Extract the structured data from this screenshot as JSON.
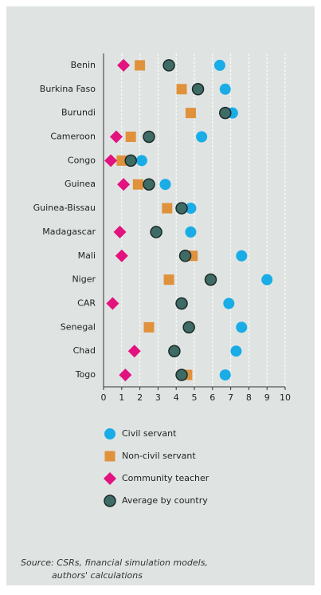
{
  "chart_data": {
    "type": "dot",
    "categories": [
      "Benin",
      "Burkina Faso",
      "Burundi",
      "Cameroon",
      "Congo",
      "Guinea",
      "Guinea-Bissau",
      "Madagascar",
      "Mali",
      "Niger",
      "CAR",
      "Senegal",
      "Chad",
      "Togo"
    ],
    "series": [
      {
        "name": "Civil servant",
        "color": "#19ace6",
        "marker": "circle",
        "values": [
          6.4,
          6.7,
          7.1,
          5.4,
          2.1,
          3.4,
          4.8,
          4.8,
          7.6,
          9.0,
          6.9,
          7.6,
          7.3,
          6.7
        ]
      },
      {
        "name": "Non-civil servant",
        "color": "#e0913c",
        "marker": "square",
        "values": [
          2.0,
          4.3,
          4.8,
          1.5,
          1.0,
          1.9,
          3.5,
          null,
          4.9,
          3.6,
          null,
          2.5,
          null,
          4.6
        ]
      },
      {
        "name": "Community teacher",
        "color": "#e2127f",
        "marker": "diamond",
        "values": [
          1.1,
          null,
          null,
          0.7,
          0.4,
          1.1,
          null,
          0.9,
          1.0,
          null,
          0.5,
          null,
          1.7,
          1.2
        ]
      },
      {
        "name": "Average by country",
        "color": "#3f6b66",
        "marker": "ringed-circle",
        "values": [
          3.6,
          5.2,
          6.7,
          2.5,
          1.5,
          2.5,
          4.3,
          2.9,
          4.5,
          5.9,
          4.3,
          4.7,
          3.9,
          4.3
        ]
      }
    ],
    "xlim": [
      0,
      10
    ],
    "xticks": [
      0,
      1,
      2,
      3,
      4,
      5,
      6,
      7,
      8,
      9,
      10
    ],
    "grid": true,
    "source": [
      "Source: CSRs, financial simulation models,",
      "authors' calculations"
    ]
  }
}
